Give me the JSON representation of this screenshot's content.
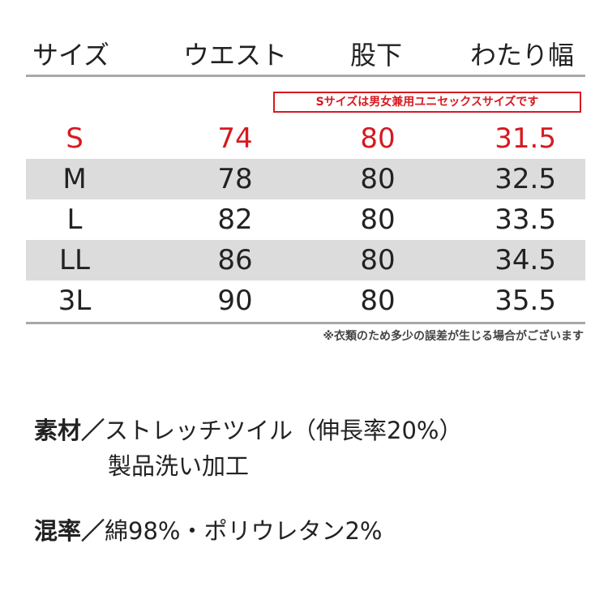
{
  "table": {
    "headers": [
      "サイズ",
      "ウエスト",
      "股下",
      "わたり幅"
    ],
    "note": "Sサイズは男女兼用ユニセックスサイズです",
    "rows": [
      [
        "S",
        "74",
        "80",
        "31.5"
      ],
      [
        "M",
        "78",
        "80",
        "32.5"
      ],
      [
        "L",
        "82",
        "80",
        "33.5"
      ],
      [
        "LL",
        "86",
        "80",
        "34.5"
      ],
      [
        "3L",
        "90",
        "80",
        "35.5"
      ]
    ],
    "footnote": "※衣類のため多少の誤差が生じる場合がございます"
  },
  "material": {
    "label": "素材／",
    "lines": [
      "ストレッチツイル（伸長率20%）",
      "製品洗い加工"
    ]
  },
  "blend": {
    "label": "混率／",
    "text": "綿98%・ポリウレタン2%"
  }
}
